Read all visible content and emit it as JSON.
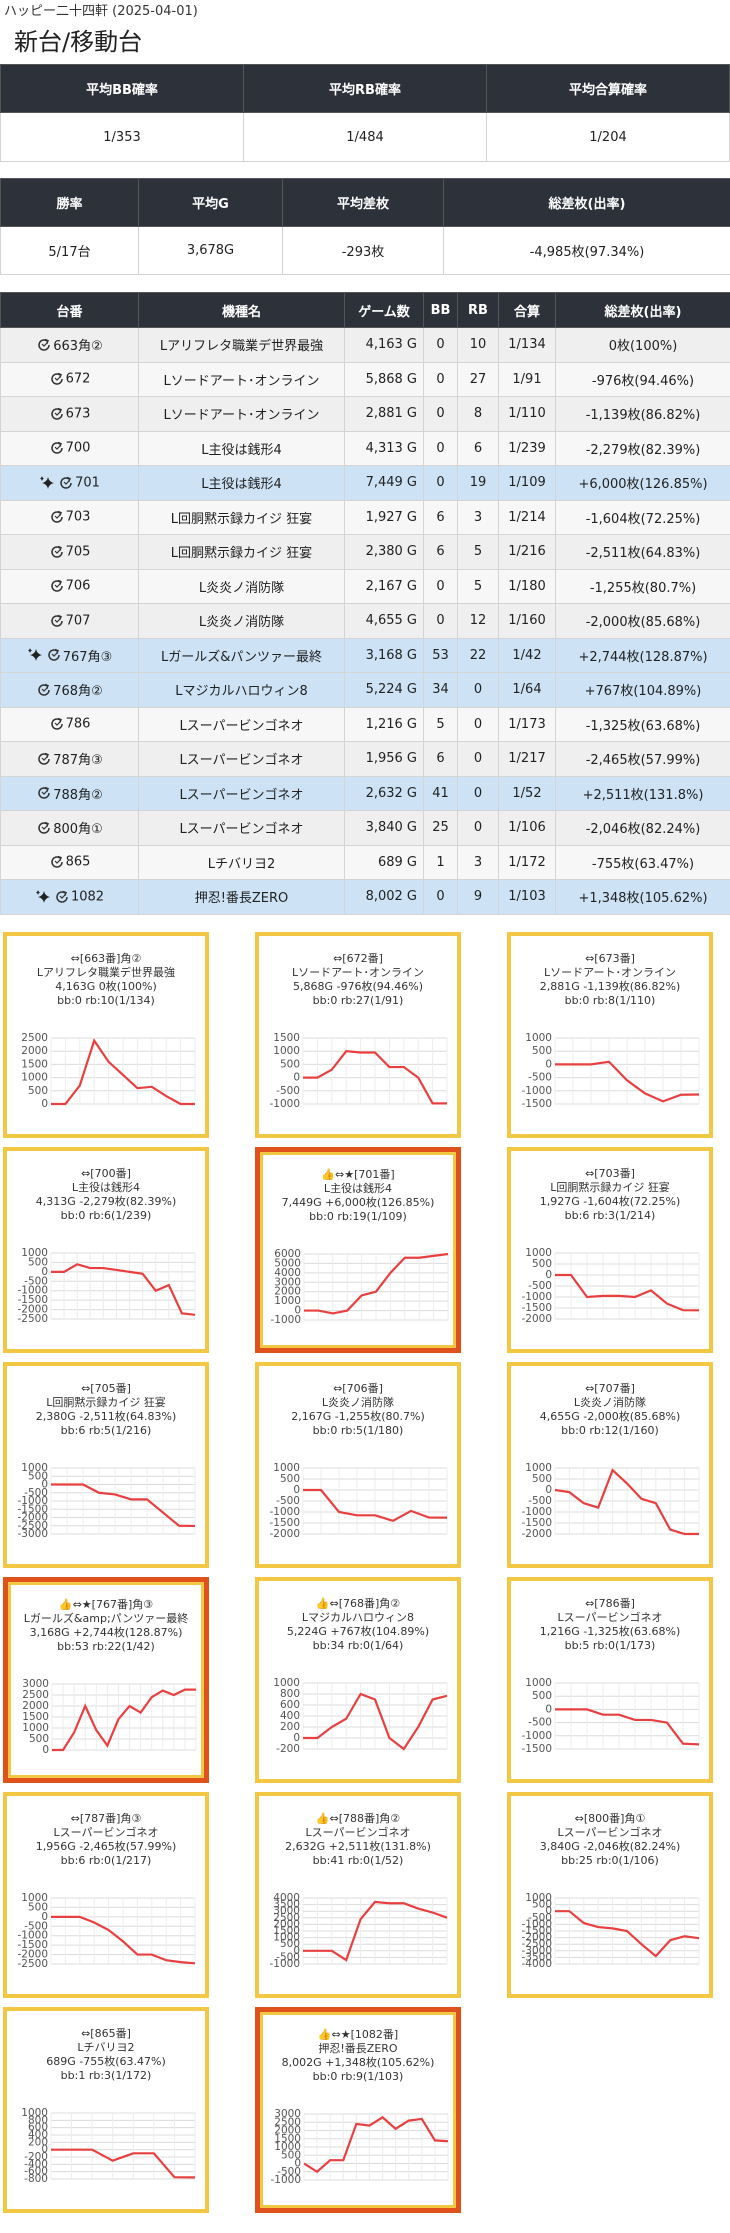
{
  "header": {
    "subtitle": "ハッピー二十四軒 (2025-04-01)",
    "title": "新台/移動台"
  },
  "summary1": {
    "headers": [
      "平均BB確率",
      "平均RB確率",
      "平均合算確率"
    ],
    "values": [
      "1/353",
      "1/484",
      "1/204"
    ]
  },
  "summary2": {
    "headers": [
      "勝率",
      "平均G",
      "平均差枚",
      "総差枚(出率)"
    ],
    "values": [
      "5/17台",
      "3,678G",
      "-293枚",
      "-4,985枚(97.34%)"
    ]
  },
  "table": {
    "headers": [
      "台番",
      "機種名",
      "ゲーム数",
      "BB",
      "RB",
      "合算",
      "総差枚(出率)"
    ],
    "rows": [
      {
        "cells": [
          "663角②",
          "Lアリフレタ職業デ世界最強",
          "4,163 G",
          "0",
          "10",
          "1/134",
          "0枚(100%)"
        ]
      },
      {
        "cells": [
          "672",
          "Lソードアート･オンライン",
          "5,868 G",
          "0",
          "27",
          "1/91",
          "-976枚(94.46%)"
        ]
      },
      {
        "cells": [
          "673",
          "Lソードアート･オンライン",
          "2,881 G",
          "0",
          "8",
          "1/110",
          "-1,139枚(86.82%)"
        ]
      },
      {
        "cells": [
          "700",
          "L主役は銭形4",
          "4,313 G",
          "0",
          "6",
          "1/239",
          "-2,279枚(82.39%)"
        ]
      },
      {
        "cells": [
          "701",
          "L主役は銭形4",
          "7,449 G",
          "0",
          "19",
          "1/109",
          "+6,000枚(126.85%)"
        ],
        "background": "#cde3f5",
        "sparkle": true
      },
      {
        "cells": [
          "703",
          "L回胴黙示録カイジ 狂宴",
          "1,927 G",
          "6",
          "3",
          "1/214",
          "-1,604枚(72.25%)"
        ]
      },
      {
        "cells": [
          "705",
          "L回胴黙示録カイジ 狂宴",
          "2,380 G",
          "6",
          "5",
          "1/216",
          "-2,511枚(64.83%)"
        ]
      },
      {
        "cells": [
          "706",
          "L炎炎ノ消防隊",
          "2,167 G",
          "0",
          "5",
          "1/180",
          "-1,255枚(80.7%)"
        ]
      },
      {
        "cells": [
          "707",
          "L炎炎ノ消防隊",
          "4,655 G",
          "0",
          "12",
          "1/160",
          "-2,000枚(85.68%)"
        ]
      },
      {
        "cells": [
          "767角③",
          "Lガールズ&パンツァー最終",
          "3,168 G",
          "53",
          "22",
          "1/42",
          "+2,744枚(128.87%)"
        ],
        "background": "#cde3f5",
        "sparkle": true
      },
      {
        "cells": [
          "768角②",
          "Lマジカルハロウィン8",
          "5,224 G",
          "34",
          "0",
          "1/64",
          "+767枚(104.89%)"
        ],
        "background": "#cde3f5"
      },
      {
        "cells": [
          "786",
          "Lスーパービンゴネオ",
          "1,216 G",
          "5",
          "0",
          "1/173",
          "-1,325枚(63.68%)"
        ]
      },
      {
        "cells": [
          "787角③",
          "Lスーパービンゴネオ",
          "1,956 G",
          "6",
          "0",
          "1/217",
          "-2,465枚(57.99%)"
        ]
      },
      {
        "cells": [
          "788角②",
          "Lスーパービンゴネオ",
          "2,632 G",
          "41",
          "0",
          "1/52",
          "+2,511枚(131.8%)"
        ],
        "background": "#cde3f5"
      },
      {
        "cells": [
          "800角①",
          "Lスーパービンゴネオ",
          "3,840 G",
          "25",
          "0",
          "1/106",
          "-2,046枚(82.24%)"
        ]
      },
      {
        "cells": [
          "865",
          "Lチバリヨ2",
          "689 G",
          "1",
          "3",
          "1/172",
          "-755枚(63.47%)"
        ]
      },
      {
        "cells": [
          "1082",
          "押忍!番長ZERO",
          "8,002 G",
          "0",
          "9",
          "1/103",
          "+1,348枚(105.62%)"
        ],
        "background": "#cde3f5",
        "sparkle": true
      }
    ]
  },
  "chart_data": [
    {
      "type": "line",
      "title_lines": [
        "⇔[663番]角②",
        "Lアリフレタ職業デ世界最強",
        "4,163G 0枚(100%)",
        "bb:0 rb:10(1/134)"
      ],
      "values": [
        0,
        0,
        700,
        2400,
        1600,
        1100,
        600,
        650,
        300,
        0,
        0
      ],
      "ylim": [
        0,
        2500
      ],
      "yticks": [
        2500,
        2000,
        1500,
        1000,
        500,
        0
      ],
      "color": "#e84040",
      "frame": "#f2c744"
    },
    {
      "type": "line",
      "title_lines": [
        "⇔[672番]",
        "Lソードアート･オンライン",
        "5,868G -976枚(94.46%)",
        "bb:0 rb:27(1/91)"
      ],
      "values": [
        0,
        0,
        300,
        1000,
        950,
        950,
        400,
        400,
        0,
        -976,
        -976
      ],
      "ylim": [
        -1000,
        1500
      ],
      "yticks": [
        1500,
        1000,
        500,
        0,
        -500,
        -1000
      ],
      "color": "#e84040",
      "frame": "#f2c744"
    },
    {
      "type": "line",
      "title_lines": [
        "⇔[673番]",
        "Lソードアート･オンライン",
        "2,881G -1,139枚(86.82%)",
        "bb:0 rb:8(1/110)"
      ],
      "values": [
        0,
        0,
        0,
        100,
        -600,
        -1100,
        -1400,
        -1150,
        -1139
      ],
      "ylim": [
        -1500,
        1000
      ],
      "yticks": [
        1000,
        500,
        0,
        -500,
        -1000,
        -1500
      ],
      "color": "#e84040",
      "frame": "#f2c744"
    },
    {
      "type": "line",
      "title_lines": [
        "⇔[700番]",
        "L主役は銭形4",
        "4,313G -2,279枚(82.39%)",
        "bb:0 rb:6(1/239)"
      ],
      "values": [
        0,
        0,
        400,
        200,
        200,
        100,
        0,
        -100,
        -1000,
        -700,
        -2200,
        -2279
      ],
      "ylim": [
        -2500,
        1000
      ],
      "yticks": [
        1000,
        500,
        0,
        -500,
        -1000,
        -1500,
        -2000,
        -2500
      ],
      "color": "#e84040",
      "frame": "#f2c744"
    },
    {
      "type": "line",
      "title_lines": [
        "👍⇔★[701番]",
        "L主役は銭形4",
        "7,449G +6,000枚(126.85%)",
        "bb:0 rb:19(1/109)"
      ],
      "values": [
        0,
        0,
        -300,
        0,
        1600,
        2000,
        4000,
        5600,
        5600,
        5800,
        6000
      ],
      "ylim": [
        -1000,
        6000
      ],
      "yticks": [
        6000,
        5000,
        4000,
        3000,
        2000,
        1000,
        0,
        -1000
      ],
      "color": "#e84040",
      "frame": "#e0521c"
    },
    {
      "type": "line",
      "title_lines": [
        "⇔[703番]",
        "L回胴黙示録カイジ 狂宴",
        "1,927G -1,604枚(72.25%)",
        "bb:6 rb:3(1/214)"
      ],
      "values": [
        0,
        0,
        -1000,
        -950,
        -950,
        -1000,
        -700,
        -1300,
        -1600,
        -1604
      ],
      "ylim": [
        -2000,
        1000
      ],
      "yticks": [
        1000,
        500,
        0,
        -500,
        -1000,
        -1500,
        -2000
      ],
      "color": "#e84040",
      "frame": "#f2c744"
    },
    {
      "type": "line",
      "title_lines": [
        "⇔[705番]",
        "L回胴黙示録カイジ 狂宴",
        "2,380G -2,511枚(64.83%)",
        "bb:6 rb:5(1/216)"
      ],
      "values": [
        0,
        0,
        0,
        -500,
        -600,
        -900,
        -900,
        -1700,
        -2500,
        -2511
      ],
      "ylim": [
        -3000,
        1000
      ],
      "yticks": [
        1000,
        500,
        0,
        -500,
        -1000,
        -1500,
        -2000,
        -2500,
        -3000
      ],
      "color": "#e84040",
      "frame": "#f2c744"
    },
    {
      "type": "line",
      "title_lines": [
        "⇔[706番]",
        "L炎炎ノ消防隊",
        "2,167G -1,255枚(80.7%)",
        "bb:0 rb:5(1/180)"
      ],
      "values": [
        0,
        0,
        -1000,
        -1150,
        -1150,
        -1400,
        -950,
        -1250,
        -1255
      ],
      "ylim": [
        -2000,
        1000
      ],
      "yticks": [
        1000,
        500,
        0,
        -500,
        -1000,
        -1500,
        -2000
      ],
      "color": "#e84040",
      "frame": "#f2c744"
    },
    {
      "type": "line",
      "title_lines": [
        "⇔[707番]",
        "L炎炎ノ消防隊",
        "4,655G -2,000枚(85.68%)",
        "bb:0 rb:12(1/160)"
      ],
      "values": [
        0,
        -100,
        -600,
        -800,
        900,
        300,
        -400,
        -600,
        -1800,
        -2000,
        -2000
      ],
      "ylim": [
        -2000,
        1000
      ],
      "yticks": [
        1000,
        500,
        0,
        -500,
        -1000,
        -1500,
        -2000
      ],
      "color": "#e84040",
      "frame": "#f2c744"
    },
    {
      "type": "line",
      "title_lines": [
        "👍⇔★[767番]角③",
        "Lガールズ&amp;パンツァー最終",
        "3,168G +2,744枚(128.87%)",
        "bb:53 rb:22(1/42)"
      ],
      "values": [
        0,
        0,
        800,
        2000,
        900,
        200,
        1400,
        2000,
        1700,
        2400,
        2700,
        2500,
        2744,
        2744
      ],
      "ylim": [
        0,
        3000
      ],
      "yticks": [
        3000,
        2500,
        2000,
        1500,
        1000,
        500,
        0
      ],
      "color": "#e84040",
      "frame": "#e0521c"
    },
    {
      "type": "line",
      "title_lines": [
        "👍⇔[768番]角②",
        "Lマジカルハロウィン8",
        "5,224G +767枚(104.89%)",
        "bb:34 rb:0(1/64)"
      ],
      "values": [
        0,
        0,
        200,
        350,
        800,
        700,
        0,
        -200,
        200,
        700,
        767
      ],
      "ylim": [
        -200,
        1000
      ],
      "yticks": [
        1000,
        800,
        600,
        400,
        200,
        0,
        -200
      ],
      "color": "#e84040",
      "frame": "#f2c744"
    },
    {
      "type": "line",
      "title_lines": [
        "⇔[786番]",
        "Lスーパービンゴネオ",
        "1,216G -1,325枚(63.68%)",
        "bb:5 rb:0(1/173)"
      ],
      "values": [
        0,
        0,
        0,
        -200,
        -200,
        -400,
        -400,
        -500,
        -1300,
        -1325
      ],
      "ylim": [
        -1500,
        1000
      ],
      "yticks": [
        1000,
        500,
        0,
        -500,
        -1000,
        -1500
      ],
      "color": "#e84040",
      "frame": "#f2c744"
    },
    {
      "type": "line",
      "title_lines": [
        "⇔[787番]角③",
        "Lスーパービンゴネオ",
        "1,956G -2,465枚(57.99%)",
        "bb:6 rb:0(1/217)"
      ],
      "values": [
        0,
        0,
        0,
        -300,
        -700,
        -1300,
        -2000,
        -2000,
        -2300,
        -2400,
        -2465
      ],
      "ylim": [
        -2500,
        1000
      ],
      "yticks": [
        1000,
        500,
        0,
        -500,
        -1000,
        -1500,
        -2000,
        -2500
      ],
      "color": "#e84040",
      "frame": "#f2c744"
    },
    {
      "type": "line",
      "title_lines": [
        "👍⇔[788番]角②",
        "Lスーパービンゴネオ",
        "2,632G +2,511枚(131.8%)",
        "bb:41 rb:0(1/52)"
      ],
      "values": [
        0,
        0,
        0,
        -700,
        2400,
        3700,
        3600,
        3600,
        3200,
        2900,
        2511
      ],
      "ylim": [
        -1000,
        4000
      ],
      "yticks": [
        4000,
        3500,
        3000,
        2500,
        2000,
        1500,
        1000,
        500,
        0,
        -500,
        -1000
      ],
      "color": "#e84040",
      "frame": "#f2c744"
    },
    {
      "type": "line",
      "title_lines": [
        "⇔[800番]角①",
        "Lスーパービンゴネオ",
        "3,840G -2,046枚(82.24%)",
        "bb:25 rb:0(1/106)"
      ],
      "values": [
        0,
        0,
        -900,
        -1200,
        -1300,
        -1500,
        -2500,
        -3400,
        -2200,
        -1900,
        -2046
      ],
      "ylim": [
        -4000,
        1000
      ],
      "yticks": [
        1000,
        500,
        0,
        -500,
        -1000,
        -1500,
        -2000,
        -2500,
        -3000,
        -3500,
        -4000
      ],
      "color": "#e84040",
      "frame": "#f2c744"
    },
    {
      "type": "line",
      "title_lines": [
        "⇔[865番]",
        "Lチバリヨ2",
        "689G -755枚(63.47%)",
        "bb:1 rb:3(1/172)"
      ],
      "values": [
        0,
        0,
        0,
        -300,
        -100,
        -100,
        -750,
        -755
      ],
      "ylim": [
        -800,
        1000
      ],
      "yticks": [
        1000,
        800,
        600,
        400,
        200,
        0,
        -200,
        -400,
        -600,
        -800
      ],
      "color": "#e84040",
      "frame": "#f2c744"
    },
    {
      "type": "line",
      "title_lines": [
        "👍⇔★[1082番]",
        "押忍!番長ZERO",
        "8,002G +1,348枚(105.62%)",
        "bb:0 rb:9(1/103)"
      ],
      "values": [
        0,
        -500,
        200,
        200,
        2400,
        2300,
        2800,
        2100,
        2600,
        2700,
        1400,
        1348
      ],
      "ylim": [
        -1000,
        3000
      ],
      "yticks": [
        3000,
        2500,
        2000,
        1500,
        1000,
        500,
        0,
        -500,
        -1000
      ],
      "color": "#e84040",
      "frame": "#e0521c"
    }
  ]
}
